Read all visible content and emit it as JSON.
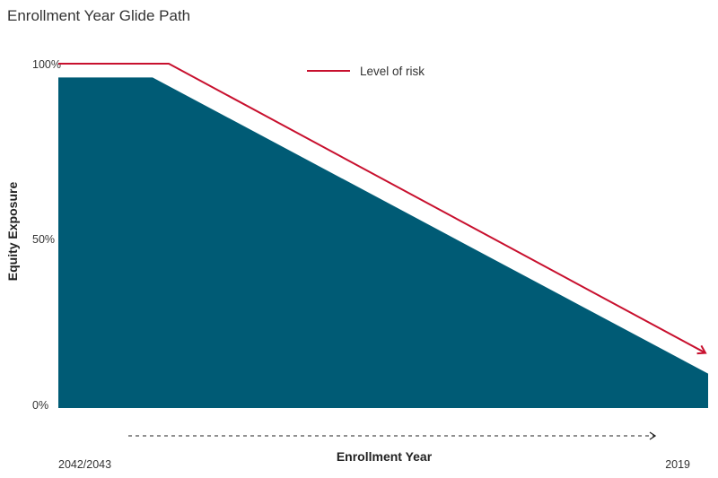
{
  "chart_data": {
    "type": "area",
    "title": "Enrollment Year Glide Path",
    "ylabel": "Equity Exposure",
    "xlabel": "Enrollment Year",
    "x_start_label": "2042/2043",
    "x_end_label": "2019",
    "y_ticks": [
      "100%",
      "50%",
      "0%"
    ],
    "ylim": [
      0,
      100
    ],
    "xlim": [
      0,
      1
    ],
    "series": [
      {
        "name": "Equity Exposure",
        "color": "#005b75",
        "x": [
          0,
          0.145,
          1
        ],
        "y": [
          96,
          96,
          10
        ]
      },
      {
        "name": "Level of risk",
        "color": "#c8102e",
        "x": [
          0,
          0.17,
          1
        ],
        "y": [
          100,
          100,
          16
        ]
      }
    ],
    "legend": {
      "label": "Level of risk",
      "placement": "top-center"
    },
    "grid": false
  }
}
